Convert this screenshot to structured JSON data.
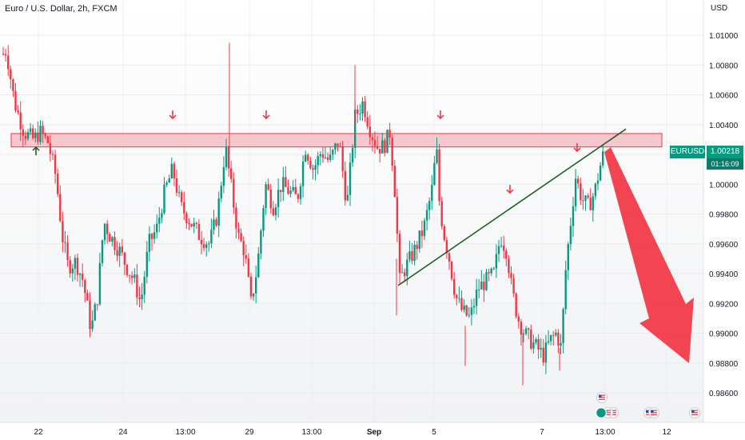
{
  "header": {
    "symbol_title": "Euro / U.S. Dollar, 2h, FXCM",
    "currency": "USD"
  },
  "price_badge": {
    "symbol": "EURUSD",
    "price": "1.00218",
    "countdown": "01:16:09"
  },
  "chart_data": {
    "type": "candlestick",
    "title": "Euro / U.S. Dollar, 2h, FXCM",
    "y_axis": {
      "unit": "USD",
      "range": [
        0.9855,
        1.0115
      ],
      "tick_labels": [
        "1.01000",
        "1.00800",
        "1.00600",
        "1.00400",
        "1.00200",
        "1.00000",
        "0.99800",
        "0.99600",
        "0.99400",
        "0.99200",
        "0.99000",
        "0.98800",
        "0.98600"
      ],
      "tick_values": [
        1.01,
        1.008,
        1.006,
        1.004,
        1.002,
        1.0,
        0.998,
        0.996,
        0.994,
        0.992,
        0.99,
        0.988,
        0.986
      ]
    },
    "x_axis": {
      "tick_labels": [
        "22",
        "24",
        "13:00",
        "29",
        "13:00",
        "Sep",
        "5",
        "7",
        "13:00",
        "12"
      ]
    },
    "resistance_zone": {
      "low": 1.0025,
      "high": 1.0034
    },
    "trendline": {
      "from_price": 0.9932,
      "to_price": 1.0037
    },
    "current_price": 1.00218,
    "colors": {
      "up": "#089981",
      "down": "#f23645",
      "zone_fill": "#f4b5bd",
      "zone_border": "#f23645",
      "trendline": "#1b5e20",
      "forecast_arrow": "#f23645",
      "badge_price": "#089981",
      "badge_timer": "#0a7a69",
      "background": "#ffffff"
    },
    "bias": "bearish",
    "grid": true
  }
}
